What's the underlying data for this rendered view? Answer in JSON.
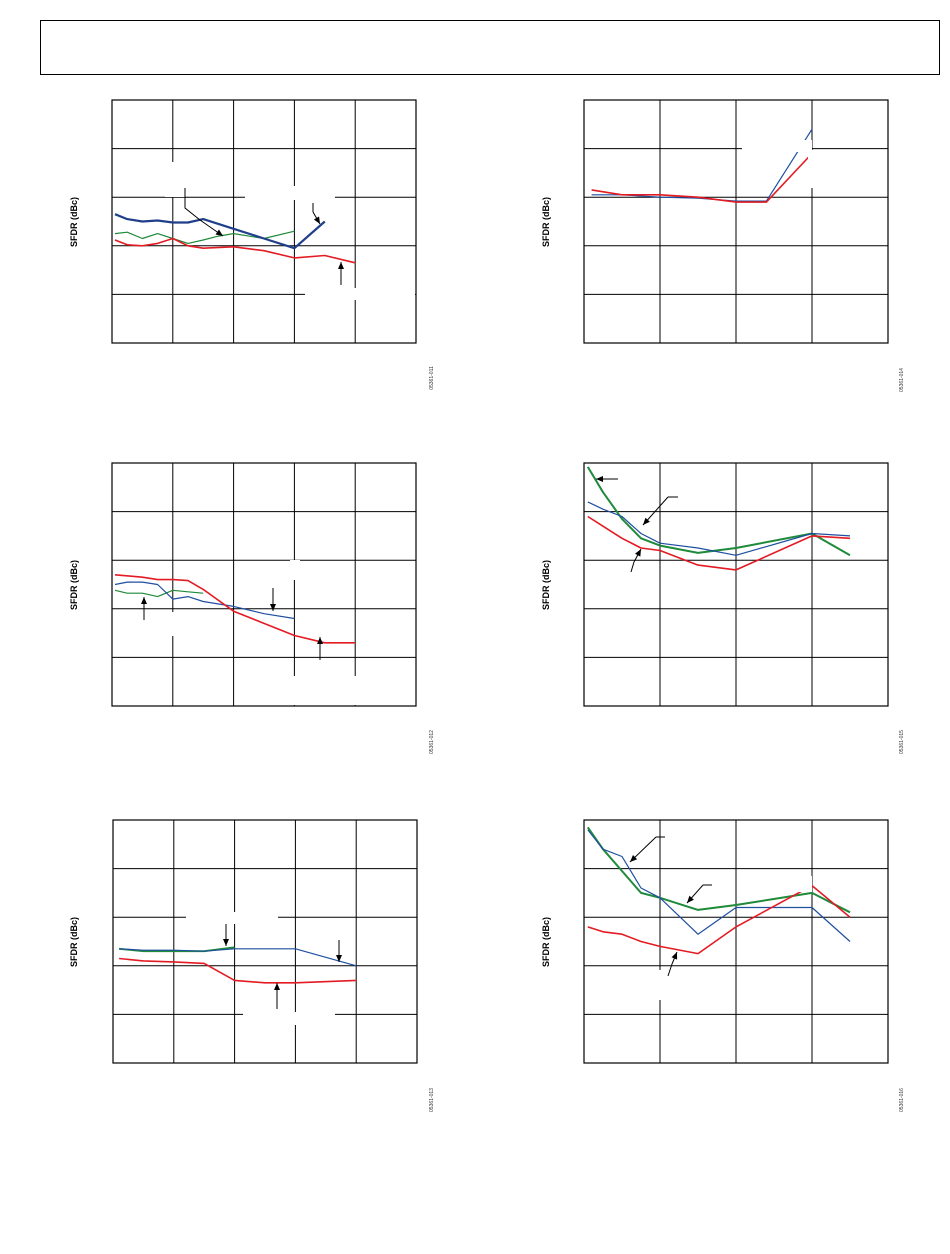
{
  "page": {
    "header_title": ""
  },
  "colors": {
    "red": "#e31b23",
    "green": "#1f8a3a",
    "blue_thin": "#1f4fa0",
    "blue_thick": "#1f3f8a"
  },
  "chart_data": [
    {
      "id": "05361-011",
      "type": "line",
      "ylabel": "SFDR (dBc)",
      "figure_id": "05361-011",
      "xlim": [
        0,
        5
      ],
      "ylim": [
        0,
        5
      ],
      "grid": true,
      "series": [
        {
          "color": "green",
          "width": 1.2,
          "x": [
            0.05,
            0.25,
            0.5,
            0.75,
            1.0,
            1.25,
            1.5,
            1.75,
            2.0,
            2.5,
            3.0
          ],
          "y": [
            2.25,
            2.28,
            2.15,
            2.25,
            2.15,
            2.05,
            2.12,
            2.2,
            2.25,
            2.15,
            2.3
          ]
        },
        {
          "color": "blue_thick",
          "width": 2.2,
          "x": [
            0.05,
            0.25,
            0.5,
            0.75,
            1.0,
            1.25,
            1.5,
            1.75,
            2.0,
            2.5,
            3.0,
            3.5
          ],
          "y": [
            2.65,
            2.55,
            2.5,
            2.52,
            2.48,
            2.48,
            2.55,
            2.45,
            2.35,
            2.15,
            1.95,
            2.5
          ]
        },
        {
          "color": "red",
          "width": 1.6,
          "x": [
            0.05,
            0.25,
            0.5,
            0.75,
            1.0,
            1.25,
            1.5,
            2.0,
            2.5,
            3.0,
            3.5,
            4.0
          ],
          "y": [
            2.12,
            2.02,
            2.0,
            2.05,
            2.15,
            2.0,
            1.95,
            1.98,
            1.9,
            1.75,
            1.8,
            1.65
          ]
        }
      ]
    },
    {
      "id": "05361-014",
      "type": "line",
      "ylabel": "SFDR (dBc)",
      "figure_id": "05361-014",
      "xlim": [
        0,
        4
      ],
      "ylim": [
        0,
        5
      ],
      "grid": true,
      "series": [
        {
          "color": "blue_thin",
          "width": 1.2,
          "x": [
            0.1,
            0.5,
            1.0,
            1.5,
            2.0,
            2.4,
            3.0
          ],
          "y": [
            3.05,
            3.05,
            3.0,
            2.98,
            2.92,
            2.92,
            4.4
          ]
        },
        {
          "color": "red",
          "width": 1.6,
          "x": [
            0.1,
            0.5,
            1.0,
            1.5,
            2.0,
            2.4,
            3.0
          ],
          "y": [
            3.15,
            3.05,
            3.05,
            3.0,
            2.9,
            2.9,
            3.9
          ]
        }
      ]
    },
    {
      "id": "05361-012",
      "type": "line",
      "ylabel": "SFDR (dBc)",
      "figure_id": "05361-012",
      "xlim": [
        0,
        5
      ],
      "ylim": [
        0,
        5
      ],
      "grid": true,
      "series": [
        {
          "color": "green",
          "width": 1.2,
          "x": [
            0.05,
            0.25,
            0.5,
            0.75,
            1.0,
            1.25,
            1.5
          ],
          "y": [
            2.38,
            2.32,
            2.32,
            2.25,
            2.38,
            2.35,
            2.32
          ]
        },
        {
          "color": "blue_thin",
          "width": 1.2,
          "x": [
            0.05,
            0.25,
            0.5,
            0.75,
            1.0,
            1.25,
            1.5,
            2.0,
            2.5,
            3.0
          ],
          "y": [
            2.5,
            2.55,
            2.55,
            2.5,
            2.2,
            2.25,
            2.15,
            2.05,
            1.9,
            1.8
          ]
        },
        {
          "color": "red",
          "width": 1.6,
          "x": [
            0.05,
            0.5,
            0.75,
            1.0,
            1.25,
            1.5,
            2.0,
            2.5,
            3.0,
            3.5,
            4.0
          ],
          "y": [
            2.7,
            2.65,
            2.6,
            2.6,
            2.58,
            2.4,
            1.95,
            1.7,
            1.45,
            1.3,
            1.3
          ]
        }
      ]
    },
    {
      "id": "05361-015",
      "type": "line",
      "ylabel": "SFDR (dBc)",
      "figure_id": "05361-015",
      "xlim": [
        0,
        4
      ],
      "ylim": [
        0,
        5
      ],
      "grid": true,
      "series": [
        {
          "color": "green",
          "width": 2.0,
          "x": [
            0.05,
            0.25,
            0.5,
            0.75,
            1.0,
            1.5,
            2.0,
            3.0,
            3.5
          ],
          "y": [
            4.92,
            4.4,
            3.85,
            3.45,
            3.3,
            3.15,
            3.25,
            3.55,
            3.1
          ]
        },
        {
          "color": "blue_thin",
          "width": 1.2,
          "x": [
            0.05,
            0.25,
            0.5,
            0.75,
            1.0,
            1.5,
            2.0,
            3.0,
            3.5
          ],
          "y": [
            4.2,
            4.05,
            3.9,
            3.55,
            3.35,
            3.25,
            3.1,
            3.55,
            3.5
          ]
        },
        {
          "color": "red",
          "width": 1.6,
          "x": [
            0.05,
            0.25,
            0.5,
            0.75,
            1.0,
            1.5,
            2.0,
            3.0,
            3.5
          ],
          "y": [
            3.9,
            3.7,
            3.45,
            3.25,
            3.2,
            2.9,
            2.8,
            3.5,
            3.45
          ]
        }
      ]
    },
    {
      "id": "05361-013",
      "type": "line",
      "ylabel": "SFDR (dBc)",
      "figure_id": "05361-013",
      "xlim": [
        0,
        5
      ],
      "ylim": [
        0,
        5
      ],
      "grid": true,
      "series": [
        {
          "color": "green",
          "width": 1.8,
          "x": [
            0.1,
            0.5,
            1.0,
            1.5,
            2.0
          ],
          "y": [
            2.35,
            2.3,
            2.3,
            2.3,
            2.38
          ]
        },
        {
          "color": "blue_thin",
          "width": 1.2,
          "x": [
            0.1,
            0.5,
            1.0,
            1.5,
            2.0,
            2.5,
            3.0,
            4.0
          ],
          "y": [
            2.35,
            2.32,
            2.32,
            2.3,
            2.35,
            2.35,
            2.35,
            2.0
          ]
        },
        {
          "color": "red",
          "width": 1.6,
          "x": [
            0.1,
            0.5,
            1.0,
            1.5,
            2.0,
            2.5,
            3.0,
            4.0
          ],
          "y": [
            2.15,
            2.1,
            2.08,
            2.05,
            1.7,
            1.65,
            1.65,
            1.7
          ]
        }
      ]
    },
    {
      "id": "05361-016",
      "type": "line",
      "ylabel": "SFDR (dBc)",
      "figure_id": "05361-016",
      "xlim": [
        0,
        4
      ],
      "ylim": [
        0,
        5
      ],
      "grid": true,
      "series": [
        {
          "color": "green",
          "width": 2.0,
          "x": [
            0.05,
            0.25,
            0.5,
            0.75,
            1.0,
            1.5,
            2.0,
            3.0,
            3.5
          ],
          "y": [
            4.85,
            4.4,
            3.95,
            3.5,
            3.4,
            3.15,
            3.25,
            3.5,
            3.1
          ]
        },
        {
          "color": "blue_thin",
          "width": 1.2,
          "x": [
            0.05,
            0.25,
            0.5,
            0.75,
            1.0,
            1.5,
            2.0,
            3.0,
            3.5
          ],
          "y": [
            4.8,
            4.4,
            4.25,
            3.6,
            3.4,
            2.65,
            3.2,
            3.2,
            2.5
          ]
        },
        {
          "color": "red",
          "width": 1.6,
          "x": [
            0.05,
            0.25,
            0.5,
            0.75,
            1.0,
            1.5,
            2.0,
            3.0,
            3.5
          ],
          "y": [
            2.8,
            2.7,
            2.65,
            2.5,
            2.4,
            2.25,
            2.8,
            3.65,
            3.0
          ]
        }
      ]
    }
  ]
}
